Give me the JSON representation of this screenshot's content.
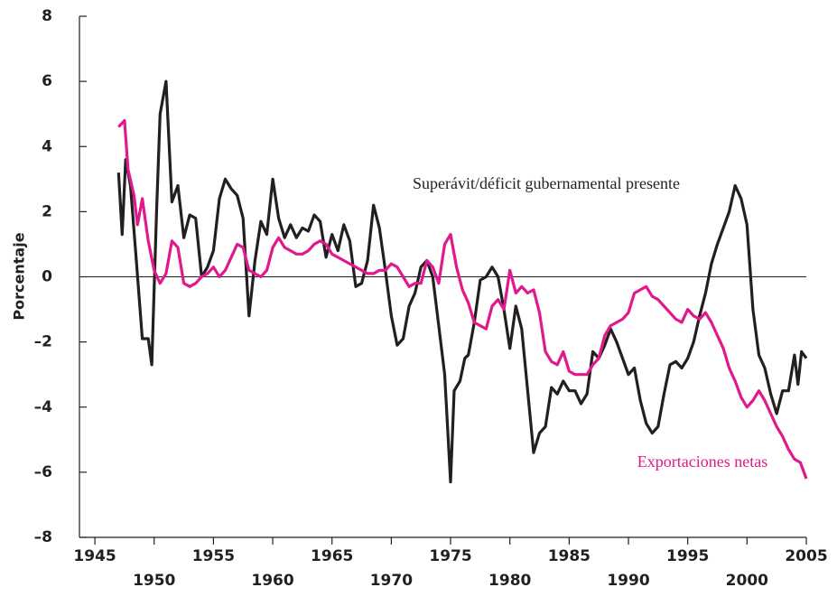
{
  "chart_data": {
    "type": "line",
    "ylabel": "Porcentaje",
    "xlim": [
      1943.7,
      2005
    ],
    "xticks": [
      1945,
      1950,
      1955,
      1960,
      1965,
      1970,
      1975,
      1980,
      1985,
      1990,
      1995,
      2000,
      2005
    ],
    "ylim": [
      -8,
      8
    ],
    "yticks": [
      {
        "value": -8,
        "label": "–8"
      },
      {
        "value": -6,
        "label": "–6"
      },
      {
        "value": -4,
        "label": "–4"
      },
      {
        "value": -2,
        "label": "–2"
      },
      0,
      2,
      4,
      6,
      8
    ],
    "zero_line": true,
    "series": [
      {
        "name": "Superávit/déficit gubernamental presente",
        "color": "#231f20",
        "x": [
          1947,
          1947.3,
          1947.6,
          1948,
          1948.5,
          1949,
          1949.5,
          1949.8,
          1950.2,
          1950.5,
          1951,
          1951.5,
          1952,
          1952.5,
          1953,
          1953.5,
          1954,
          1954.5,
          1955,
          1955.5,
          1956,
          1956.5,
          1957,
          1957.5,
          1958,
          1958.5,
          1959,
          1959.5,
          1960,
          1960.5,
          1961,
          1961.5,
          1962,
          1962.5,
          1963,
          1963.5,
          1964,
          1964.5,
          1965,
          1965.5,
          1966,
          1966.5,
          1967,
          1967.5,
          1968,
          1968.5,
          1969,
          1969.5,
          1970,
          1970.5,
          1971,
          1971.5,
          1972,
          1972.5,
          1973,
          1973.5,
          1974,
          1974.5,
          1975,
          1975.3,
          1975.8,
          1976.2,
          1976.5,
          1977,
          1977.5,
          1978,
          1978.5,
          1979,
          1979.5,
          1980,
          1980.5,
          1981,
          1981.5,
          1982,
          1982.5,
          1983,
          1983.5,
          1984,
          1984.5,
          1985,
          1985.5,
          1986,
          1986.5,
          1987,
          1987.5,
          1988,
          1988.5,
          1989,
          1989.5,
          1990,
          1990.5,
          1991,
          1991.5,
          1992,
          1992.5,
          1993,
          1993.5,
          1994,
          1994.5,
          1995,
          1995.5,
          1996,
          1996.5,
          1997,
          1997.5,
          1998,
          1998.5,
          1999,
          1999.5,
          2000,
          2000.5,
          2001,
          2001.5,
          2002,
          2002.5,
          2003,
          2003.5,
          2004,
          2004.3,
          2004.6,
          2005
        ],
        "values": [
          3.2,
          1.3,
          3.6,
          2.8,
          0.5,
          -1.9,
          -1.9,
          -2.7,
          2,
          5,
          6,
          2.3,
          2.8,
          1.2,
          1.9,
          1.8,
          0,
          0.3,
          0.8,
          2.4,
          3,
          2.7,
          2.5,
          1.8,
          -1.2,
          0.5,
          1.7,
          1.3,
          3,
          1.8,
          1.2,
          1.6,
          1.2,
          1.5,
          1.4,
          1.9,
          1.7,
          0.6,
          1.3,
          0.8,
          1.6,
          1.1,
          -0.3,
          -0.2,
          0.5,
          2.2,
          1.5,
          0.2,
          -1.2,
          -2.1,
          -1.9,
          -0.9,
          -0.5,
          0.3,
          0.5,
          0,
          -1.5,
          -3,
          -6.3,
          -3.5,
          -3.2,
          -2.5,
          -2.4,
          -1.4,
          -0.1,
          0,
          0.3,
          0,
          -1,
          -2.2,
          -0.9,
          -1.6,
          -3.5,
          -5.4,
          -4.8,
          -4.6,
          -3.4,
          -3.6,
          -3.2,
          -3.5,
          -3.5,
          -3.9,
          -3.6,
          -2.3,
          -2.5,
          -2.1,
          -1.6,
          -2,
          -2.5,
          -3,
          -2.8,
          -3.8,
          -4.5,
          -4.8,
          -4.6,
          -3.6,
          -2.7,
          -2.6,
          -2.8,
          -2.5,
          -2,
          -1.2,
          -0.5,
          0.4,
          1,
          1.5,
          2,
          2.8,
          2.4,
          1.6,
          -1,
          -2.4,
          -2.8,
          -3.6,
          -4.2,
          -3.5,
          -3.5,
          -2.4,
          -3.3,
          -2.3,
          -2.5
        ]
      },
      {
        "name": "Exportaciones netas",
        "color": "#e0198c",
        "x": [
          1947,
          1947.5,
          1947.8,
          1948.3,
          1948.6,
          1949,
          1949.5,
          1950,
          1950.5,
          1951,
          1951.5,
          1952,
          1952.5,
          1953,
          1953.5,
          1954,
          1954.5,
          1955,
          1955.5,
          1956,
          1956.5,
          1957,
          1957.5,
          1958,
          1958.5,
          1959,
          1959.5,
          1960,
          1960.5,
          1961,
          1961.5,
          1962,
          1962.5,
          1963,
          1963.5,
          1964,
          1964.5,
          1965,
          1965.5,
          1966,
          1966.5,
          1967,
          1967.5,
          1968,
          1968.5,
          1969,
          1969.5,
          1970,
          1970.5,
          1971,
          1971.5,
          1972,
          1972.5,
          1973,
          1973.5,
          1974,
          1974.5,
          1975,
          1975.5,
          1976,
          1976.5,
          1977,
          1977.5,
          1978,
          1978.5,
          1979,
          1979.5,
          1980,
          1980.5,
          1981,
          1981.5,
          1982,
          1982.5,
          1983,
          1983.5,
          1984,
          1984.5,
          1985,
          1985.5,
          1986,
          1986.5,
          1987,
          1987.5,
          1988,
          1988.5,
          1989,
          1989.5,
          1990,
          1990.5,
          1991,
          1991.5,
          1992,
          1992.5,
          1993,
          1993.5,
          1994,
          1994.5,
          1995,
          1995.5,
          1996,
          1996.5,
          1997,
          1997.5,
          1998,
          1998.5,
          1999,
          1999.5,
          2000,
          2000.5,
          2001,
          2001.5,
          2002,
          2002.5,
          2003,
          2003.5,
          2004,
          2004.5,
          2005
        ],
        "values": [
          4.6,
          4.8,
          3.3,
          2.5,
          1.6,
          2.4,
          1.1,
          0.2,
          -0.2,
          0.1,
          1.1,
          0.9,
          -0.2,
          -0.3,
          -0.2,
          0,
          0.1,
          0.3,
          0,
          0.2,
          0.6,
          1,
          0.9,
          0.2,
          0.1,
          0,
          0.2,
          0.9,
          1.2,
          0.9,
          0.8,
          0.7,
          0.7,
          0.8,
          1,
          1.1,
          1,
          0.7,
          0.6,
          0.5,
          0.4,
          0.3,
          0.2,
          0.1,
          0.1,
          0.2,
          0.2,
          0.4,
          0.3,
          0,
          -0.3,
          -0.2,
          -0.2,
          0.5,
          0.3,
          -0.2,
          1,
          1.3,
          0.3,
          -0.4,
          -0.8,
          -1.4,
          -1.5,
          -1.6,
          -0.9,
          -0.7,
          -1,
          0.2,
          -0.5,
          -0.3,
          -0.5,
          -0.4,
          -1.1,
          -2.3,
          -2.6,
          -2.7,
          -2.3,
          -2.9,
          -3,
          -3,
          -3,
          -2.7,
          -2.5,
          -1.8,
          -1.5,
          -1.4,
          -1.3,
          -1.1,
          -0.5,
          -0.4,
          -0.3,
          -0.6,
          -0.7,
          -0.9,
          -1.1,
          -1.3,
          -1.4,
          -1,
          -1.2,
          -1.3,
          -1.1,
          -1.4,
          -1.8,
          -2.2,
          -2.8,
          -3.2,
          -3.7,
          -4,
          -3.8,
          -3.5,
          -3.8,
          -4.2,
          -4.6,
          -4.9,
          -5.3,
          -5.6,
          -5.7,
          -6.2
        ]
      }
    ]
  }
}
